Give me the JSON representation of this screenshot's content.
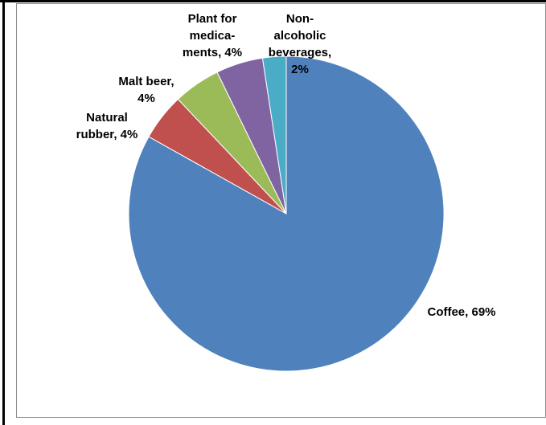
{
  "chart_data": {
    "type": "pie",
    "title": "",
    "start_angle_deg": 0,
    "direction": "clockwise",
    "slices": [
      {
        "name": "Coffee",
        "value": 69,
        "label_lines": [
          "Coffee, 69%"
        ],
        "color": "#4F81BD"
      },
      {
        "name": "Natural rubber",
        "value": 4,
        "label_lines": [
          "Natural",
          "rubber, 4%"
        ],
        "color": "#C0504D"
      },
      {
        "name": "Malt beer",
        "value": 4,
        "label_lines": [
          "Malt beer,",
          "4%"
        ],
        "color": "#9BBB59"
      },
      {
        "name": "Plant for medicaments",
        "value": 4,
        "label_lines": [
          "Plant for",
          "medica-",
          "ments, 4%"
        ],
        "color": "#8064A2"
      },
      {
        "name": "Non-alcoholic beverages",
        "value": 2,
        "label_lines": [
          "Non-",
          "alcoholic",
          "beverages,",
          "2%"
        ],
        "color": "#4BACC6"
      }
    ]
  }
}
